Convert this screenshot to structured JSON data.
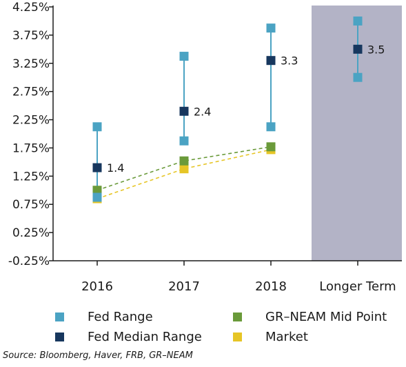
{
  "chart_data": {
    "type": "scatter",
    "categories": [
      "2016",
      "2017",
      "2018",
      "Longer Term"
    ],
    "y_ticks": [
      "4.25%",
      "3.75%",
      "3.25%",
      "2.75%",
      "2.25%",
      "1.75%",
      "1.25%",
      "0.75%",
      "0.25%",
      "-0.25%"
    ],
    "ylim": [
      -0.25,
      4.25
    ],
    "shaded_category": "Longer Term",
    "series": [
      {
        "name": "Fed Range",
        "color": "#4ba3c3",
        "low": [
          0.875,
          1.875,
          2.125,
          3.0
        ],
        "high": [
          2.125,
          3.375,
          3.875,
          4.0
        ]
      },
      {
        "name": "Fed Median Range",
        "color": "#17375e",
        "values": [
          1.4,
          2.4,
          3.3,
          3.5
        ],
        "labels": [
          "1.4",
          "2.4",
          "3.3",
          "3.5"
        ]
      },
      {
        "name": "GR–NEAM Mid Point",
        "color": "#6a9a3a",
        "values": [
          1.0,
          1.52,
          1.77,
          null
        ]
      },
      {
        "name": "Market",
        "color": "#e6c526",
        "values": [
          0.85,
          1.38,
          1.72,
          null
        ]
      }
    ],
    "source": "Source: Bloomberg, Haver, FRB, GR–NEAM"
  }
}
